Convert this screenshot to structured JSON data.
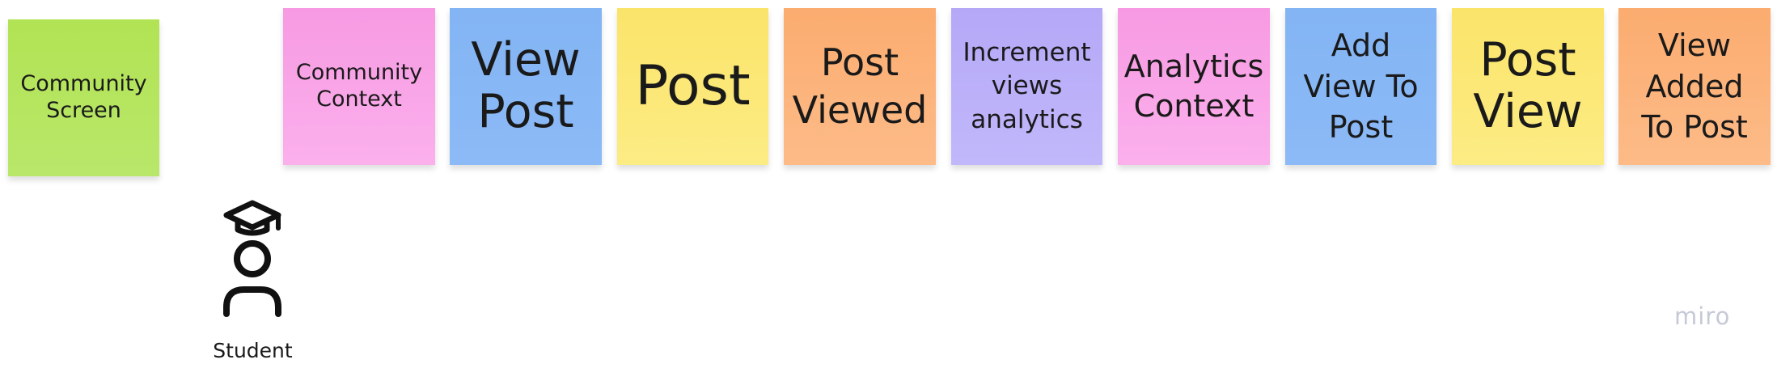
{
  "stickies": [
    {
      "lines": [
        "Community",
        "Screen"
      ],
      "color": "green"
    },
    {
      "lines": [
        "Community",
        "Context"
      ],
      "color": "pink"
    },
    {
      "lines": [
        "View",
        "Post"
      ],
      "color": "blue"
    },
    {
      "lines": [
        "Post"
      ],
      "color": "yellow"
    },
    {
      "lines": [
        "Post",
        "Viewed"
      ],
      "color": "orange"
    },
    {
      "lines": [
        "Increment",
        "views",
        "analytics"
      ],
      "color": "purple"
    },
    {
      "lines": [
        "Analytics",
        "Context"
      ],
      "color": "pink"
    },
    {
      "lines": [
        "Add",
        "View To",
        "Post"
      ],
      "color": "blue"
    },
    {
      "lines": [
        "Post",
        "View"
      ],
      "color": "yellow"
    },
    {
      "lines": [
        "View",
        "Added",
        "To Post"
      ],
      "color": "orange"
    }
  ],
  "actor": {
    "label": "Student",
    "icon": "student-icon"
  },
  "watermark": "miro",
  "colors": {
    "green": "#b2e354",
    "pink": "#f79ae3",
    "blue": "#83b4f3",
    "yellow": "#fbe46a",
    "orange": "#fbac6f",
    "purple": "#b5a8f7"
  }
}
